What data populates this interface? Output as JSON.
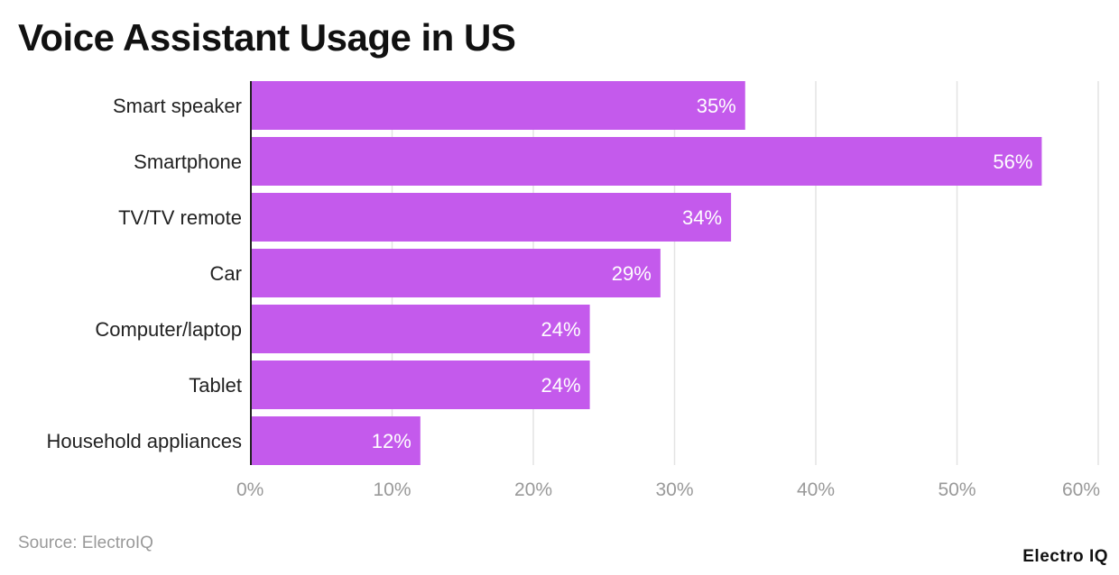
{
  "chart_data": {
    "type": "bar",
    "orientation": "horizontal",
    "title": "Voice Assistant Usage in US",
    "categories": [
      "Smart speaker",
      "Smartphone",
      "TV/TV remote",
      "Car",
      "Computer/laptop",
      "Tablet",
      "Household appliances"
    ],
    "values": [
      35,
      56,
      34,
      29,
      24,
      24,
      12
    ],
    "value_labels": [
      "35%",
      "56%",
      "34%",
      "29%",
      "24%",
      "24%",
      "12%"
    ],
    "xlim": [
      0,
      60
    ],
    "x_ticks": [
      0,
      10,
      20,
      30,
      40,
      50,
      60
    ],
    "x_tick_labels": [
      "0%",
      "10%",
      "20%",
      "30%",
      "40%",
      "50%",
      "60%"
    ],
    "grid": "vertical",
    "legend": "none",
    "bar_color": "#c45aec"
  },
  "footer": {
    "source": "Source: ElectroIQ",
    "brand": "Electro IQ"
  },
  "colors": {
    "bar": "#c45aec",
    "grid": "#e3e3e3",
    "axis": "#222222",
    "tick_label": "#999999",
    "category_label": "#222222",
    "value_label": "#ffffff"
  }
}
